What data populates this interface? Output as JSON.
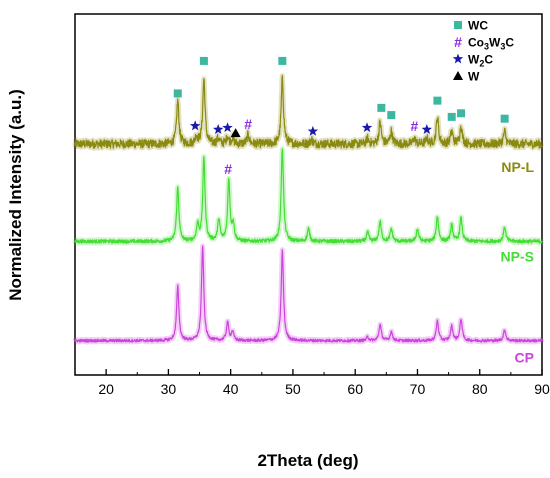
{
  "chart_data": {
    "type": "line",
    "xlabel": "2Theta (deg)",
    "ylabel": "Normalized Intensity (a.u.)",
    "xlim": [
      15,
      90
    ],
    "x_ticks": [
      20,
      30,
      40,
      50,
      60,
      70,
      80,
      90
    ],
    "grid": false,
    "legend_position": "top-right",
    "colors": {
      "WC": "#3cb8a0",
      "Co3W3C": "#8a2be2",
      "W2C": "#1a1aaa",
      "W": "#000000"
    },
    "legend": [
      {
        "key": "WC",
        "marker": "square",
        "label": "WC"
      },
      {
        "key": "Co3W3C",
        "marker": "hash",
        "label_parts": [
          "Co",
          "3",
          "W",
          "3",
          "C"
        ]
      },
      {
        "key": "W2C",
        "marker": "star",
        "label_parts": [
          "W",
          "2",
          "C"
        ]
      },
      {
        "key": "W",
        "marker": "triangle",
        "label": "W"
      }
    ],
    "series": [
      {
        "name": "NP-L",
        "color": "#8a8a10",
        "baseline": 0.64,
        "noise": 0.012,
        "peaks": [
          {
            "x": 31.5,
            "h": 0.12
          },
          {
            "x": 34.5,
            "h": 0.02
          },
          {
            "x": 35.7,
            "h": 0.18
          },
          {
            "x": 38.0,
            "h": 0.015
          },
          {
            "x": 39.5,
            "h": 0.02
          },
          {
            "x": 40.3,
            "h": 0.015
          },
          {
            "x": 42.8,
            "h": 0.025
          },
          {
            "x": 48.3,
            "h": 0.18
          },
          {
            "x": 53.0,
            "h": 0.012
          },
          {
            "x": 62.0,
            "h": 0.015
          },
          {
            "x": 64.0,
            "h": 0.06
          },
          {
            "x": 65.8,
            "h": 0.035
          },
          {
            "x": 69.5,
            "h": 0.015
          },
          {
            "x": 71.5,
            "h": 0.015
          },
          {
            "x": 73.2,
            "h": 0.075
          },
          {
            "x": 75.5,
            "h": 0.035
          },
          {
            "x": 77.0,
            "h": 0.05
          },
          {
            "x": 84.0,
            "h": 0.035
          }
        ],
        "markers": [
          {
            "type": "square",
            "x": 31.5,
            "y": 0.78
          },
          {
            "type": "star",
            "x": 34.3,
            "y": 0.69
          },
          {
            "type": "square",
            "x": 35.7,
            "y": 0.87
          },
          {
            "type": "star",
            "x": 38.0,
            "y": 0.68
          },
          {
            "type": "star",
            "x": 39.5,
            "y": 0.685
          },
          {
            "type": "triangle",
            "x": 40.8,
            "y": 0.67
          },
          {
            "type": "hash",
            "x": 42.8,
            "y": 0.695
          },
          {
            "type": "square",
            "x": 48.3,
            "y": 0.87
          },
          {
            "type": "star",
            "x": 53.2,
            "y": 0.675
          },
          {
            "type": "star",
            "x": 61.9,
            "y": 0.685
          },
          {
            "type": "square",
            "x": 64.2,
            "y": 0.74
          },
          {
            "type": "square",
            "x": 65.8,
            "y": 0.72
          },
          {
            "type": "hash",
            "x": 69.5,
            "y": 0.69
          },
          {
            "type": "star",
            "x": 71.5,
            "y": 0.68
          },
          {
            "type": "square",
            "x": 73.2,
            "y": 0.76
          },
          {
            "type": "square",
            "x": 75.5,
            "y": 0.715
          },
          {
            "type": "square",
            "x": 77.0,
            "y": 0.725
          },
          {
            "type": "square",
            "x": 84.0,
            "y": 0.71
          }
        ]
      },
      {
        "name": "NP-S",
        "color": "#44dd33",
        "baseline": 0.37,
        "noise": 0.005,
        "peaks": [
          {
            "x": 31.5,
            "h": 0.15
          },
          {
            "x": 34.7,
            "h": 0.045
          },
          {
            "x": 35.7,
            "h": 0.23
          },
          {
            "x": 38.1,
            "h": 0.06
          },
          {
            "x": 39.7,
            "h": 0.17
          },
          {
            "x": 40.4,
            "h": 0.045
          },
          {
            "x": 48.3,
            "h": 0.26
          },
          {
            "x": 52.5,
            "h": 0.035
          },
          {
            "x": 62.0,
            "h": 0.025
          },
          {
            "x": 64.0,
            "h": 0.055
          },
          {
            "x": 65.8,
            "h": 0.035
          },
          {
            "x": 70.0,
            "h": 0.035
          },
          {
            "x": 73.2,
            "h": 0.07
          },
          {
            "x": 75.5,
            "h": 0.045
          },
          {
            "x": 77.0,
            "h": 0.065
          },
          {
            "x": 84.0,
            "h": 0.04
          }
        ],
        "markers": [
          {
            "type": "hash",
            "x": 39.6,
            "y": 0.57
          }
        ]
      },
      {
        "name": "CP",
        "color": "#cc44dd",
        "baseline": 0.095,
        "noise": 0.004,
        "peaks": [
          {
            "x": 31.5,
            "h": 0.15
          },
          {
            "x": 35.5,
            "h": 0.26
          },
          {
            "x": 39.5,
            "h": 0.05
          },
          {
            "x": 40.3,
            "h": 0.025
          },
          {
            "x": 48.3,
            "h": 0.25
          },
          {
            "x": 62.0,
            "h": 0.01
          },
          {
            "x": 64.0,
            "h": 0.045
          },
          {
            "x": 65.8,
            "h": 0.025
          },
          {
            "x": 73.2,
            "h": 0.055
          },
          {
            "x": 75.5,
            "h": 0.04
          },
          {
            "x": 77.0,
            "h": 0.06
          },
          {
            "x": 84.0,
            "h": 0.03
          }
        ],
        "markers": []
      }
    ]
  }
}
